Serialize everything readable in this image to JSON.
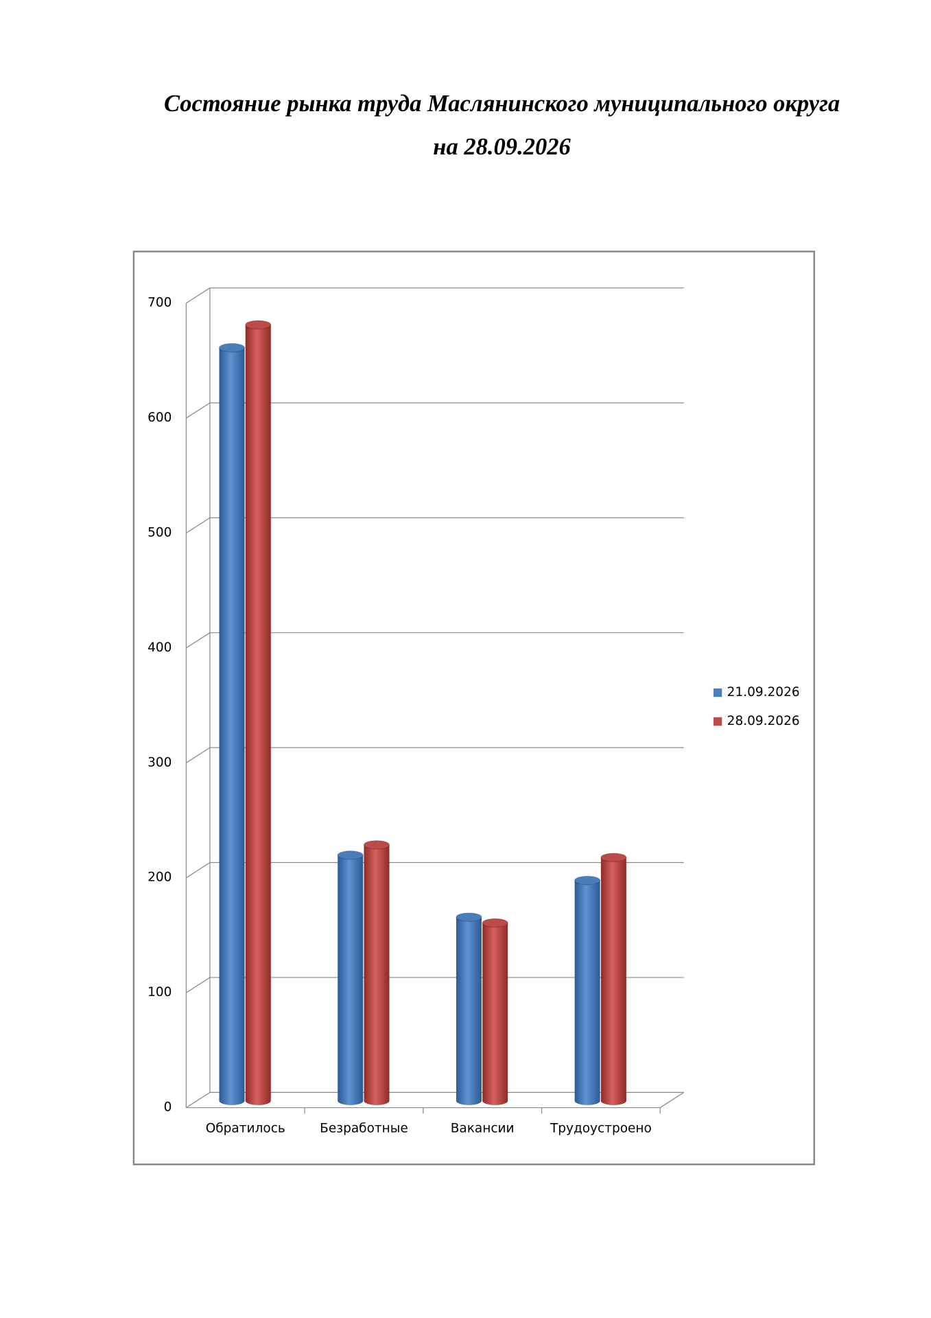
{
  "chart_data": {
    "type": "bar",
    "title": "Состояние рынка труда Маслянинского муниципального округа",
    "subtitle": "на 28.09.2026",
    "categories": [
      "Обратилось",
      "Безработные",
      "Вакансии",
      "Трудоустроено"
    ],
    "series": [
      {
        "name": "21.09.2026",
        "color": "#4a7ebb",
        "values": [
          656,
          214,
          160,
          192
        ]
      },
      {
        "name": "28.09.2026",
        "color": "#be4b48",
        "values": [
          676,
          223,
          155,
          212
        ]
      }
    ],
    "ylim": [
      0,
      700
    ],
    "yticks": [
      0,
      100,
      200,
      300,
      400,
      500,
      600,
      700
    ],
    "grid": true,
    "legend": "right"
  }
}
